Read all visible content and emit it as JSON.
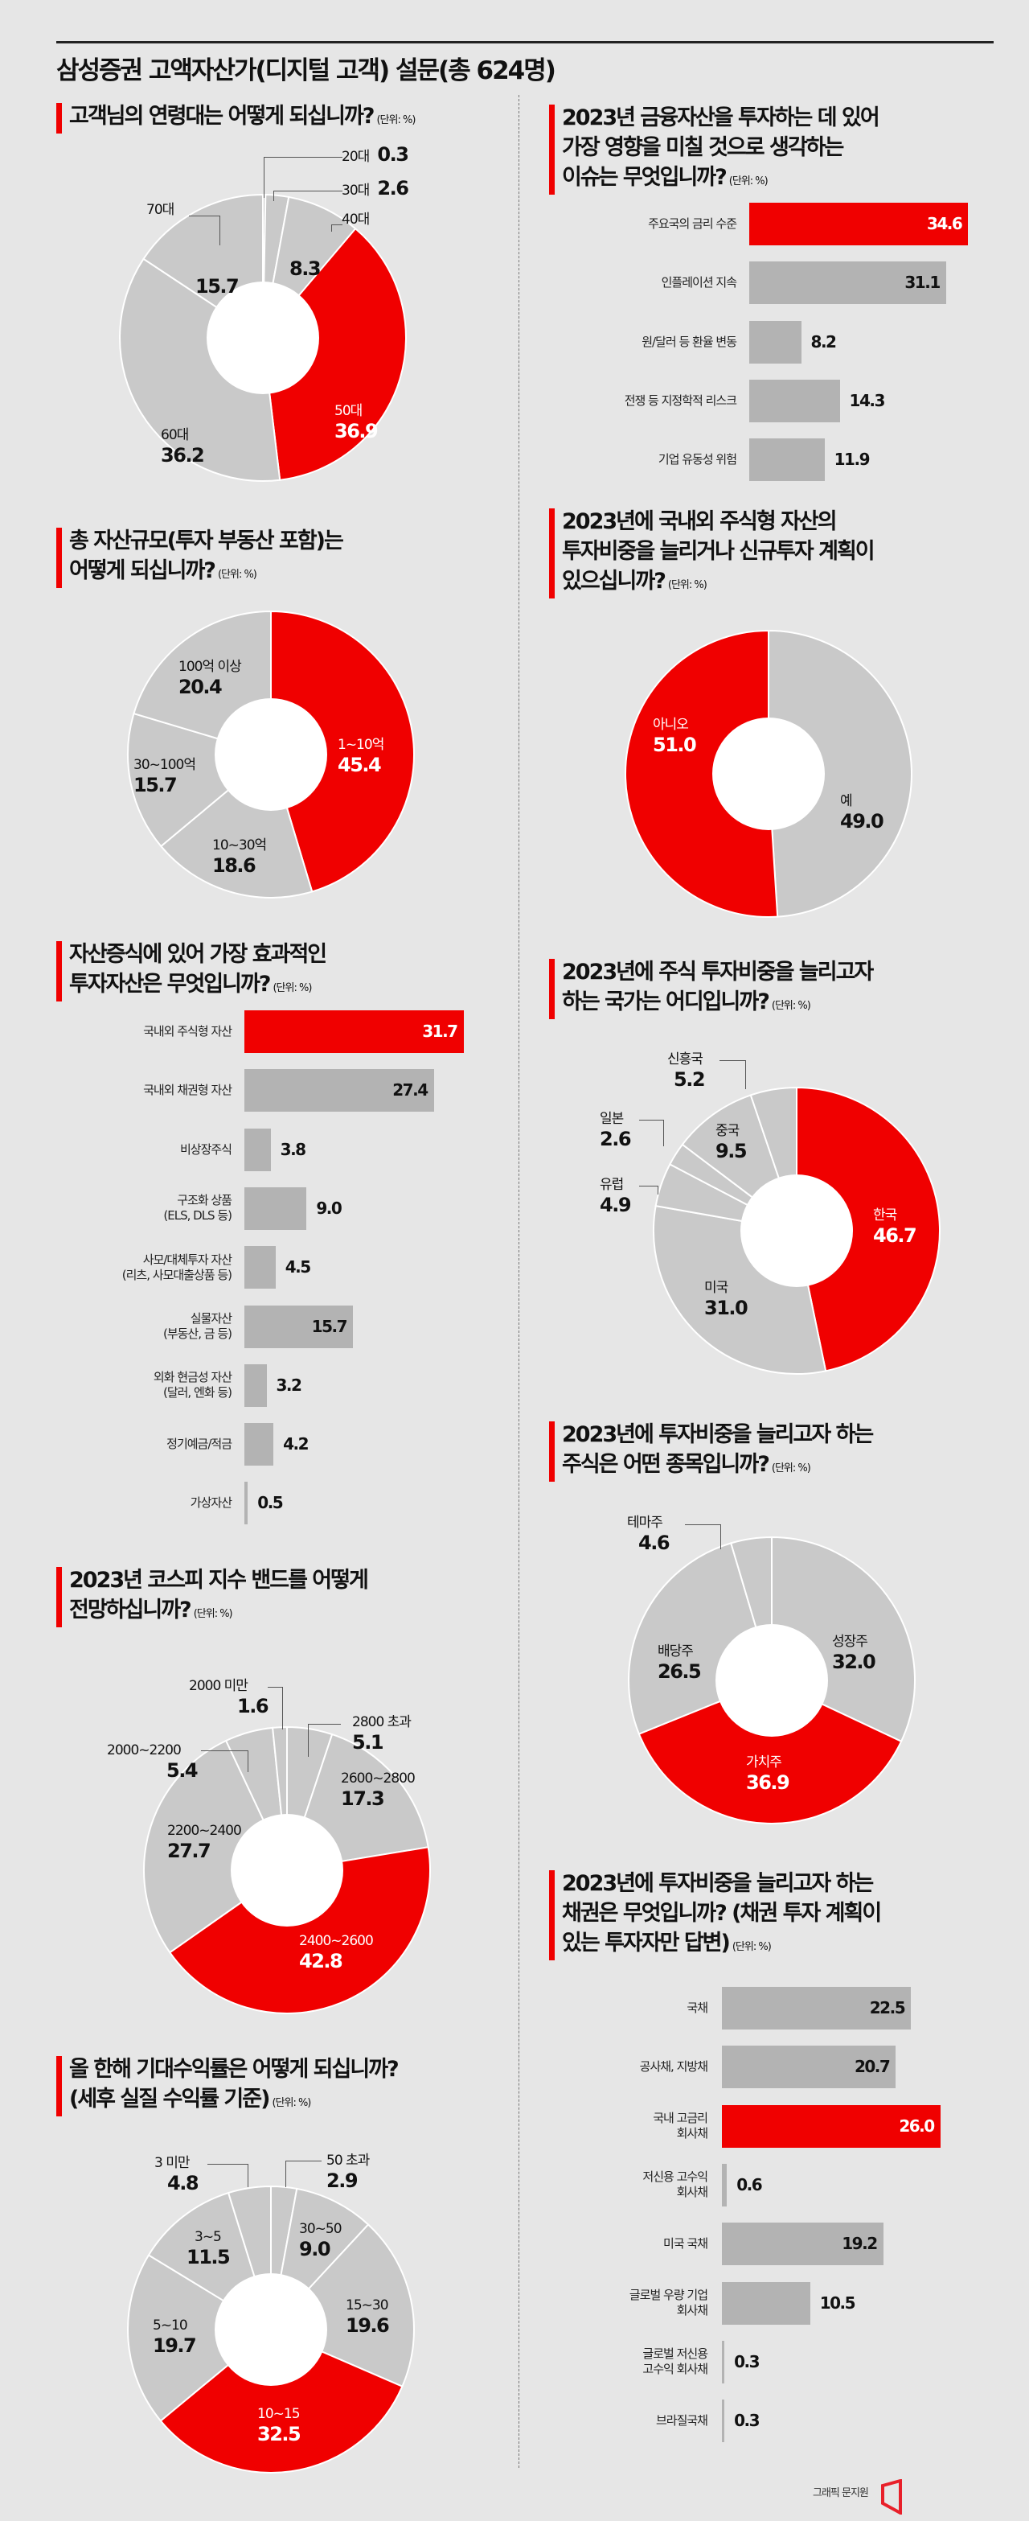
{
  "header": {
    "title": "삼성증권 고액자산가(디지털 고객) 설문(총 624명)"
  },
  "unit_label": "(단위: %)",
  "colors": {
    "highlight": "#f00000",
    "pie_grey": "#c9c9c9",
    "bar_grey": "#b3b3b3",
    "background": "#e6e6e6",
    "hole": "#ffffff"
  },
  "sections": {
    "age": {
      "title_lines": [
        "고객님의 연령대는 어떻게 되십니까?"
      ]
    },
    "assets": {
      "title_lines": [
        "총 자산규모(투자 부동산 포함)는",
        "어떻게 되십니까?"
      ]
    },
    "effective": {
      "title_lines": [
        "자산증식에 있어 가장 효과적인",
        "투자자산은 무엇입니까?"
      ]
    },
    "kospi": {
      "title_lines": [
        "2023년 코스피 지수 밴드를 어떻게",
        "전망하십니까?"
      ]
    },
    "returns": {
      "title_lines": [
        "올 한해 기대수익률은 어떻게 되십니까?",
        "(세후 실질 수익률 기준)"
      ]
    },
    "issues": {
      "title_lines": [
        "2023년 금융자산을 투자하는 데 있어",
        "가장 영향을 미칠 것으로 생각하는",
        "이슈는 무엇입니까?"
      ]
    },
    "plan": {
      "title_lines": [
        "2023년에 국내외 주식형 자산의",
        "투자비중을 늘리거나 신규투자 계획이",
        "있으십니까?"
      ]
    },
    "country": {
      "title_lines": [
        "2023년에 주식 투자비중을 늘리고자",
        "하는 국가는 어디입니까?"
      ]
    },
    "stocks": {
      "title_lines": [
        "2023년에 투자비중을 늘리고자 하는",
        "주식은 어떤 종목입니까?"
      ]
    },
    "bonds": {
      "title_lines": [
        "2023년에 투자비중을 늘리고자 하는",
        "채권은 무엇입니까? (채권 투자 계획이",
        "있는 투자자만 답변)"
      ]
    }
  },
  "footer": {
    "credit": "그래픽 문지원"
  },
  "chart_data": [
    {
      "id": "age",
      "type": "pie",
      "title": "고객님의 연령대는 어떻게 되십니까?",
      "unit": "%",
      "categories": [
        "20대",
        "30대",
        "40대",
        "50대",
        "60대",
        "70대"
      ],
      "values": [
        0.3,
        2.6,
        8.3,
        36.9,
        36.2,
        15.7
      ],
      "highlight": "50대"
    },
    {
      "id": "assets",
      "type": "pie",
      "title": "총 자산규모(투자 부동산 포함)는 어떻게 되십니까?",
      "unit": "%",
      "categories": [
        "1~10억",
        "10~30억",
        "30~100억",
        "100억 이상"
      ],
      "values": [
        45.4,
        18.6,
        15.7,
        20.4
      ],
      "highlight": "1~10억"
    },
    {
      "id": "effective",
      "type": "bar",
      "orientation": "horizontal",
      "title": "자산증식에 있어 가장 효과적인 투자자산은 무엇입니까?",
      "unit": "%",
      "categories": [
        "국내외 주식형 자산",
        "국내외 채권형 자산",
        "비상장주식",
        "구조화 상품\n(ELS, DLS 등)",
        "사모/대체투자 자산\n(리츠, 사모대출상품 등)",
        "실물자산\n(부동산, 금 등)",
        "외화 현금성 자산\n(달러, 엔화 등)",
        "정기예금/적금",
        "가상자산"
      ],
      "values": [
        31.7,
        27.4,
        3.8,
        9.0,
        4.5,
        15.7,
        3.2,
        4.2,
        0.5
      ],
      "highlight": "국내외 주식형 자산"
    },
    {
      "id": "kospi",
      "type": "pie",
      "title": "2023년 코스피 지수 밴드를 어떻게 전망하십니까?",
      "unit": "%",
      "categories": [
        "2800 초과",
        "2600~2800",
        "2400~2600",
        "2200~2400",
        "2000~2200",
        "2000 미만"
      ],
      "values": [
        5.1,
        17.3,
        42.8,
        27.7,
        5.4,
        1.6
      ],
      "highlight": "2400~2600"
    },
    {
      "id": "returns",
      "type": "pie",
      "title": "올 한해 기대수익률은 어떻게 되십니까? (세후 실질 수익률 기준)",
      "unit": "%",
      "categories": [
        "50 초과",
        "30~50",
        "15~30",
        "10~15",
        "5~10",
        "3~5",
        "3 미만"
      ],
      "values": [
        2.9,
        9.0,
        19.6,
        32.5,
        19.7,
        11.5,
        4.8
      ],
      "highlight": "10~15"
    },
    {
      "id": "issues",
      "type": "bar",
      "orientation": "horizontal",
      "title": "2023년 금융자산을 투자하는 데 있어 가장 영향을 미칠 것으로 생각하는 이슈는 무엇입니까?",
      "unit": "%",
      "categories": [
        "주요국의 금리 수준",
        "인플레이션 지속",
        "원/달러 등 환율 변동",
        "전쟁 등 지정학적 리스크",
        "기업 유동성 위험"
      ],
      "values": [
        34.6,
        31.1,
        8.2,
        14.3,
        11.9
      ],
      "highlight": "주요국의 금리 수준"
    },
    {
      "id": "plan",
      "type": "pie",
      "title": "2023년에 국내외 주식형 자산의 투자비중을 늘리거나 신규투자 계획이 있으십니까?",
      "unit": "%",
      "categories": [
        "예",
        "아니오"
      ],
      "values": [
        49.0,
        51.0
      ],
      "highlight": "아니오"
    },
    {
      "id": "country",
      "type": "pie",
      "title": "2023년에 주식 투자비중을 늘리고자 하는 국가는 어디입니까?",
      "unit": "%",
      "categories": [
        "한국",
        "미국",
        "유럽",
        "일본",
        "중국",
        "신흥국"
      ],
      "values": [
        46.7,
        31.0,
        4.9,
        2.6,
        9.5,
        5.2
      ],
      "highlight": "한국"
    },
    {
      "id": "stocks",
      "type": "pie",
      "title": "2023년에 투자비중을 늘리고자 하는 주식은 어떤 종목입니까?",
      "unit": "%",
      "categories": [
        "성장주",
        "가치주",
        "배당주",
        "테마주"
      ],
      "values": [
        32.0,
        36.9,
        26.5,
        4.6
      ],
      "highlight": "가치주"
    },
    {
      "id": "bonds",
      "type": "bar",
      "orientation": "horizontal",
      "title": "2023년에 투자비중을 늘리고자 하는 채권은 무엇입니까? (채권 투자 계획이 있는 투자자만 답변)",
      "unit": "%",
      "categories": [
        "국채",
        "공사채, 지방채",
        "국내 고금리\n회사채",
        "저신용 고수익\n회사채",
        "미국 국채",
        "글로벌 우량 기업\n회사채",
        "글로벌 저신용\n고수익 회사채",
        "브라질국채"
      ],
      "values": [
        22.5,
        20.7,
        26.0,
        0.6,
        19.2,
        10.5,
        0.3,
        0.3
      ],
      "highlight": "국내 고금리\n회사채"
    }
  ]
}
